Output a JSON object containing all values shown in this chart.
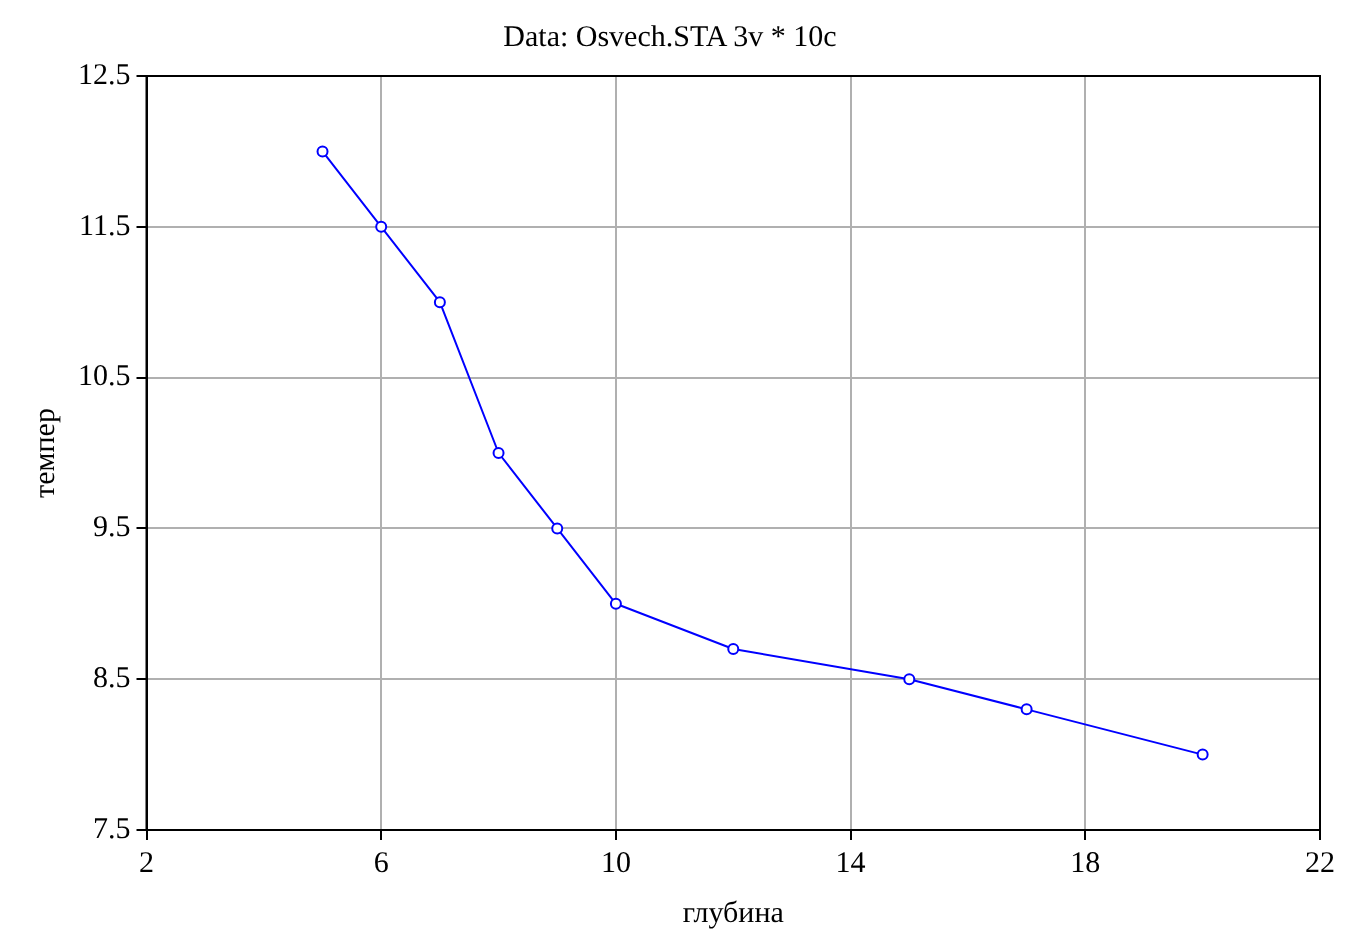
{
  "chart_data": {
    "type": "line",
    "title": "Data: Osvech.STA 3v * 10c",
    "xlabel": "глубина",
    "ylabel": "темпер",
    "x": [
      5,
      6,
      7,
      8,
      9,
      10,
      12,
      15,
      17,
      20
    ],
    "series": [
      {
        "color": "#0000ff",
        "values": [
          12,
          11.5,
          11,
          10,
          9.5,
          9,
          8.7,
          8.5,
          8.3,
          8
        ]
      }
    ],
    "xlim": [
      2,
      22
    ],
    "xticks": [
      2,
      6,
      10,
      14,
      18,
      22
    ],
    "ylim": [
      7.5,
      12.5
    ],
    "yticks": [
      7.5,
      8.5,
      9.5,
      10.5,
      11.5,
      12.5
    ],
    "grid": true,
    "legend": false,
    "marker": "circle",
    "line_style": "solid"
  }
}
